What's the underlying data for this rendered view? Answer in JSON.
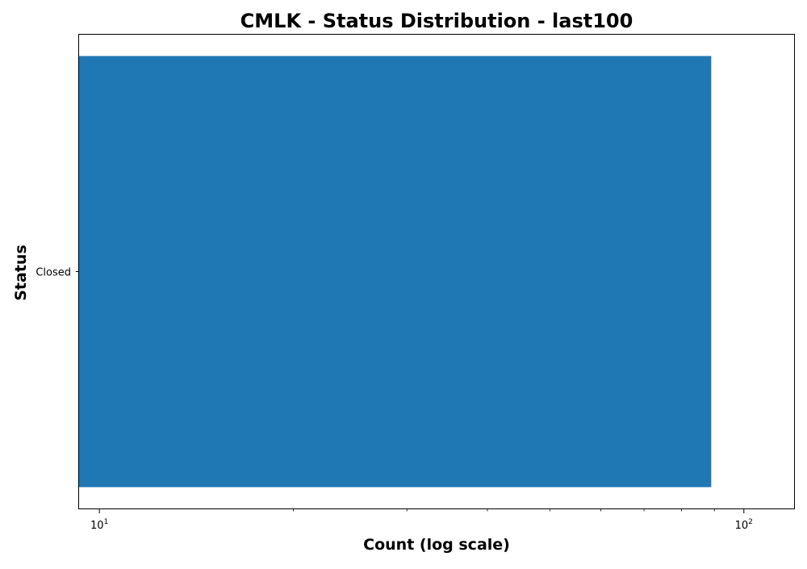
{
  "chart_data": {
    "type": "bar",
    "orientation": "horizontal",
    "title": "CMLK - Status Distribution - last100",
    "xlabel": "Count (log scale)",
    "ylabel": "Status",
    "x_scale": "log",
    "xlim": [
      9.3,
      120
    ],
    "x_ticks": [
      {
        "value": 10,
        "base": "10",
        "exp": "1"
      },
      {
        "value": 100,
        "base": "10",
        "exp": "2"
      }
    ],
    "categories": [
      "Closed"
    ],
    "values": [
      89
    ],
    "bar_color": "#1f77b4",
    "grid": false,
    "legend": "none"
  }
}
